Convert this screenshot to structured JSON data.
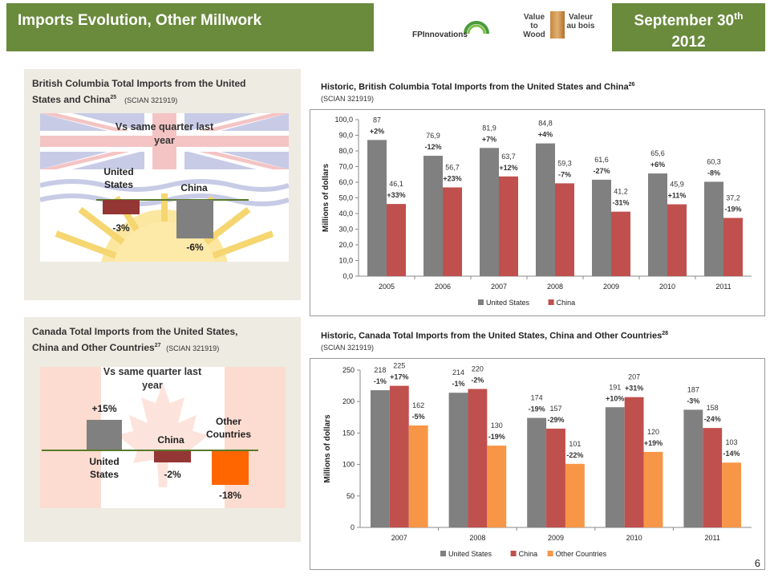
{
  "header": {
    "title": "Imports Evolution, Other Millwork",
    "date_line1": "September 30",
    "date_sup": "th",
    "date_line2": "2012",
    "logo_fp": "FPInnovations",
    "logo_value_to_wood": "Value to Wood",
    "logo_valeur_au_bois": "Valeur au bois"
  },
  "bc_panel": {
    "title_line1": "British Columbia Total Imports from the United",
    "title_line2": "States and China",
    "title_sup": "25",
    "title_code": "(SCIAN 321919)",
    "vs_title": "Vs same quarter last year",
    "us_label": "United States",
    "china_label": "China",
    "us_value": "-3%",
    "china_value": "-6%",
    "us_pct": -3,
    "china_pct": -6
  },
  "ca_panel": {
    "title_line1": "Canada Total Imports from the United States,",
    "title_line2": "China and Other Countries",
    "title_sup": "27",
    "title_code": "(SCIAN 321919)",
    "vs_title": "Vs same quarter last year",
    "us_label": "United States",
    "china_label": "China",
    "other_label": "Other Countries",
    "us_value": "+15%",
    "china_value": "-2%",
    "other_value": "-18%",
    "us_pct": 15,
    "china_pct": -2,
    "other_pct": -18
  },
  "chart_data": [
    {
      "type": "bar",
      "title": "Historic, British Columbia Total Imports from the United States and China",
      "title_sup": "26",
      "subtitle": "(SCIAN 321919)",
      "ylabel": "Millions of dollars",
      "ylim": [
        0,
        100
      ],
      "yticks": [
        "0,0",
        "10,0",
        "20,0",
        "30,0",
        "40,0",
        "50,0",
        "60,0",
        "70,0",
        "80,0",
        "90,0",
        "100,0"
      ],
      "categories": [
        "2005",
        "2006",
        "2007",
        "2008",
        "2009",
        "2010",
        "2011"
      ],
      "series": [
        {
          "name": "United States",
          "color": "#808080",
          "values": [
            87,
            76.9,
            81.9,
            84.8,
            61.6,
            65.6,
            60.3
          ],
          "labels": [
            "87",
            "76,9",
            "81,9",
            "84,8",
            "61,6",
            "65,6",
            "60,3"
          ],
          "changes": [
            "+2%",
            "-12%",
            "+7%",
            "+4%",
            "-27%",
            "+6%",
            "-8%"
          ]
        },
        {
          "name": "China",
          "color": "#c0504d",
          "values": [
            46.1,
            56.7,
            63.7,
            59.3,
            41.2,
            45.9,
            37.2
          ],
          "labels": [
            "46,1",
            "56,7",
            "63,7",
            "59,3",
            "41,2",
            "45,9",
            "37,2"
          ],
          "changes": [
            "+33%",
            "+23%",
            "+12%",
            "-7%",
            "-31%",
            "+11%",
            "-19%"
          ]
        }
      ],
      "legend": "bottom"
    },
    {
      "type": "bar",
      "title": "Historic, Canada Total Imports from the United States, China and Other Countries",
      "title_sup": "28",
      "subtitle": "(SCIAN 321919)",
      "ylabel": "Millions of dollars",
      "ylim": [
        0,
        250
      ],
      "yticks": [
        "0",
        "50",
        "100",
        "150",
        "200",
        "250"
      ],
      "categories": [
        "2007",
        "2008",
        "2009",
        "2010",
        "2011"
      ],
      "series": [
        {
          "name": "United States",
          "color": "#808080",
          "values": [
            218,
            214,
            174,
            191,
            187
          ],
          "labels": [
            "218",
            "214",
            "174",
            "191",
            "187"
          ],
          "changes": [
            "-1%",
            "-1%",
            "-19%",
            "+10%",
            "-3%"
          ]
        },
        {
          "name": "China",
          "color": "#c0504d",
          "values": [
            225,
            220,
            157,
            207,
            158
          ],
          "labels": [
            "225",
            "220",
            "157",
            "207",
            "158"
          ],
          "changes": [
            "+17%",
            "-2%",
            "-29%",
            "+31%",
            "-24%"
          ]
        },
        {
          "name": "Other Countries",
          "color": "#f79646",
          "values": [
            162,
            130,
            101,
            120,
            103
          ],
          "labels": [
            "162",
            "130",
            "101",
            "120",
            "103"
          ],
          "changes": [
            "-5%",
            "-19%",
            "-22%",
            "+19%",
            "-14%"
          ]
        }
      ],
      "legend": "bottom"
    }
  ],
  "page_number": "6"
}
